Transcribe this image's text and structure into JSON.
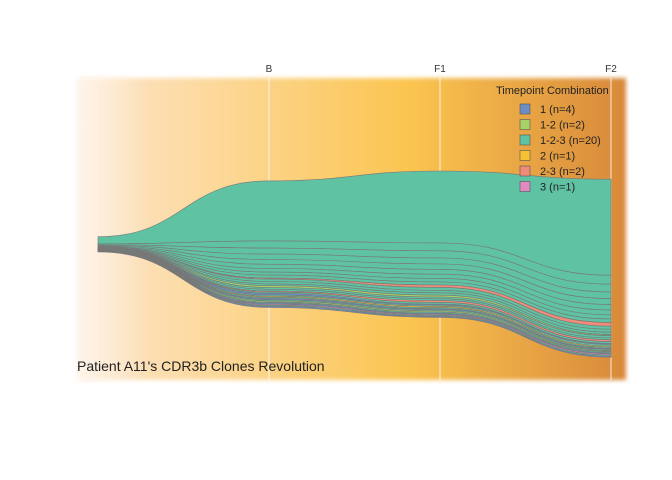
{
  "chart_data": {
    "type": "area",
    "title": "Patient A11's CDR3b Clones Revolution",
    "xlabel": "",
    "ylabel": "",
    "timepoints": [
      "B",
      "F1",
      "F2"
    ],
    "background_gradient": [
      "#fde6cf",
      "#fbc550",
      "#d8893a"
    ],
    "grid": true,
    "legend": {
      "title": "Timepoint Combination",
      "position": "top-right",
      "entries": [
        {
          "label": "1 (n=4)",
          "color": "#6c8ec7"
        },
        {
          "label": "1-2 (n=2)",
          "color": "#a8d168"
        },
        {
          "label": "1-2-3 (n=20)",
          "color": "#5fc2a2"
        },
        {
          "label": "2 (n=1)",
          "color": "#f5c234"
        },
        {
          "label": "2-3 (n=2)",
          "color": "#ef8b78"
        },
        {
          "label": "3 (n=1)",
          "color": "#e08bc0"
        }
      ]
    },
    "series_note_color": "#777777",
    "clones": [
      {
        "group": "1-2-3",
        "values": [
          10,
          12,
          16
        ],
        "color": "#5fc2a2"
      },
      {
        "group": "1-2-3",
        "values": [
          1.2,
          1.3,
          1.5
        ],
        "color": "#5fc2a2"
      },
      {
        "group": "1-2-3",
        "values": [
          1.0,
          1.2,
          1.3
        ],
        "color": "#5fc2a2"
      },
      {
        "group": "1-2-3",
        "values": [
          0.9,
          1.0,
          1.1
        ],
        "color": "#5fc2a2"
      },
      {
        "group": "1-2-3",
        "values": [
          0.8,
          0.9,
          1.0
        ],
        "color": "#5fc2a2"
      },
      {
        "group": "1-2-3",
        "values": [
          0.7,
          0.8,
          0.9
        ],
        "color": "#5fc2a2"
      },
      {
        "group": "1-2-3",
        "values": [
          0.6,
          0.7,
          0.8
        ],
        "color": "#5fc2a2"
      },
      {
        "group": "1-2-3",
        "values": [
          0.5,
          0.6,
          0.7
        ],
        "color": "#5fc2a2"
      },
      {
        "group": "1-2-3",
        "values": [
          0.5,
          0.5,
          0.6
        ],
        "color": "#5fc2a2"
      },
      {
        "group": "2-3",
        "values": [
          0,
          0.4,
          0.6
        ],
        "color": "#ef8b78"
      },
      {
        "group": "1-2-3",
        "values": [
          0.4,
          0.5,
          0.5
        ],
        "color": "#5fc2a2"
      },
      {
        "group": "1-2-3",
        "values": [
          0.4,
          0.4,
          0.5
        ],
        "color": "#5fc2a2"
      },
      {
        "group": "1-2-3",
        "values": [
          0.3,
          0.4,
          0.4
        ],
        "color": "#5fc2a2"
      },
      {
        "group": "1-2",
        "values": [
          0.3,
          0.3,
          0
        ],
        "color": "#a8d168"
      },
      {
        "group": "1-2-3",
        "values": [
          0.3,
          0.3,
          0.4
        ],
        "color": "#5fc2a2"
      },
      {
        "group": "1-2-3",
        "values": [
          0.3,
          0.3,
          0.3
        ],
        "color": "#5fc2a2"
      },
      {
        "group": "2-3",
        "values": [
          0,
          0.3,
          0.3
        ],
        "color": "#ef8b78"
      },
      {
        "group": "1-2-3",
        "values": [
          0.2,
          0.3,
          0.3
        ],
        "color": "#5fc2a2"
      },
      {
        "group": "1",
        "values": [
          0.3,
          0,
          0
        ],
        "color": "#6c8ec7"
      },
      {
        "group": "1-2-3",
        "values": [
          0.2,
          0.2,
          0.3
        ],
        "color": "#5fc2a2"
      },
      {
        "group": "2",
        "values": [
          0,
          0.2,
          0
        ],
        "color": "#f5c234"
      },
      {
        "group": "1-2-3",
        "values": [
          0.2,
          0.2,
          0.2
        ],
        "color": "#5fc2a2"
      },
      {
        "group": "1",
        "values": [
          0.2,
          0,
          0
        ],
        "color": "#6c8ec7"
      },
      {
        "group": "1-2-3",
        "values": [
          0.2,
          0.2,
          0.2
        ],
        "color": "#5fc2a2"
      },
      {
        "group": "1-2",
        "values": [
          0.2,
          0.2,
          0
        ],
        "color": "#a8d168"
      },
      {
        "group": "1-2-3",
        "values": [
          0.1,
          0.2,
          0.2
        ],
        "color": "#5fc2a2"
      },
      {
        "group": "1",
        "values": [
          0.2,
          0,
          0
        ],
        "color": "#6c8ec7"
      },
      {
        "group": "3",
        "values": [
          0,
          0,
          0.2
        ],
        "color": "#e08bc0"
      },
      {
        "group": "1-2-3",
        "values": [
          0.1,
          0.1,
          0.2
        ],
        "color": "#5fc2a2"
      },
      {
        "group": "1",
        "values": [
          0.2,
          0,
          0
        ],
        "color": "#6c8ec7"
      }
    ]
  }
}
